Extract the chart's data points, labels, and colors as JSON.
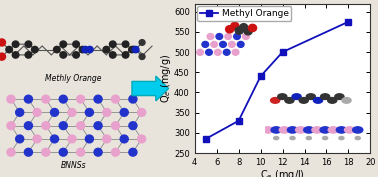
{
  "x": [
    5,
    8,
    10,
    12,
    18
  ],
  "y": [
    285,
    330,
    440,
    500,
    575
  ],
  "line_color": "#1111BB",
  "marker": "s",
  "marker_size": 4,
  "label": "Methyl Orange",
  "xlabel": "C$_e$ (mg/l)",
  "ylabel": "Q$_e$ (mg/g)",
  "xlim": [
    4,
    20
  ],
  "ylim": [
    250,
    620
  ],
  "xticks": [
    4,
    6,
    8,
    10,
    12,
    14,
    16,
    18,
    20
  ],
  "yticks": [
    250,
    300,
    350,
    400,
    450,
    500,
    550,
    600
  ],
  "axis_fontsize": 7,
  "tick_fontsize": 6,
  "legend_fontsize": 6.5,
  "bg_color": "#E8E4DC",
  "plot_bg": "#FFFFFF",
  "arrow_color": "#00CCDD",
  "label1": "Methly Orange",
  "label2": "BNNSs",
  "label_fontsize": 5.5,
  "mo_atoms_x": [
    0.08,
    0.13,
    0.18,
    0.23,
    0.28,
    0.33,
    0.38,
    0.43,
    0.48,
    0.53,
    0.58,
    0.63,
    0.68,
    0.73,
    0.78,
    0.83
  ],
  "mo_atoms_y": [
    0.68,
    0.72,
    0.68,
    0.72,
    0.68,
    0.72,
    0.68,
    0.72,
    0.68,
    0.72,
    0.68,
    0.72,
    0.68,
    0.72,
    0.68,
    0.72
  ],
  "mo_colors": [
    "#CC0000",
    "#333333",
    "#333333",
    "#1122CC",
    "#333333",
    "#333333",
    "#1122CC",
    "#333333",
    "#333333",
    "#333333",
    "#333333",
    "#333333",
    "#333333",
    "#333333",
    "#333333",
    "#AAAAAA"
  ],
  "bn_rows": 5,
  "bn_cols": 8
}
